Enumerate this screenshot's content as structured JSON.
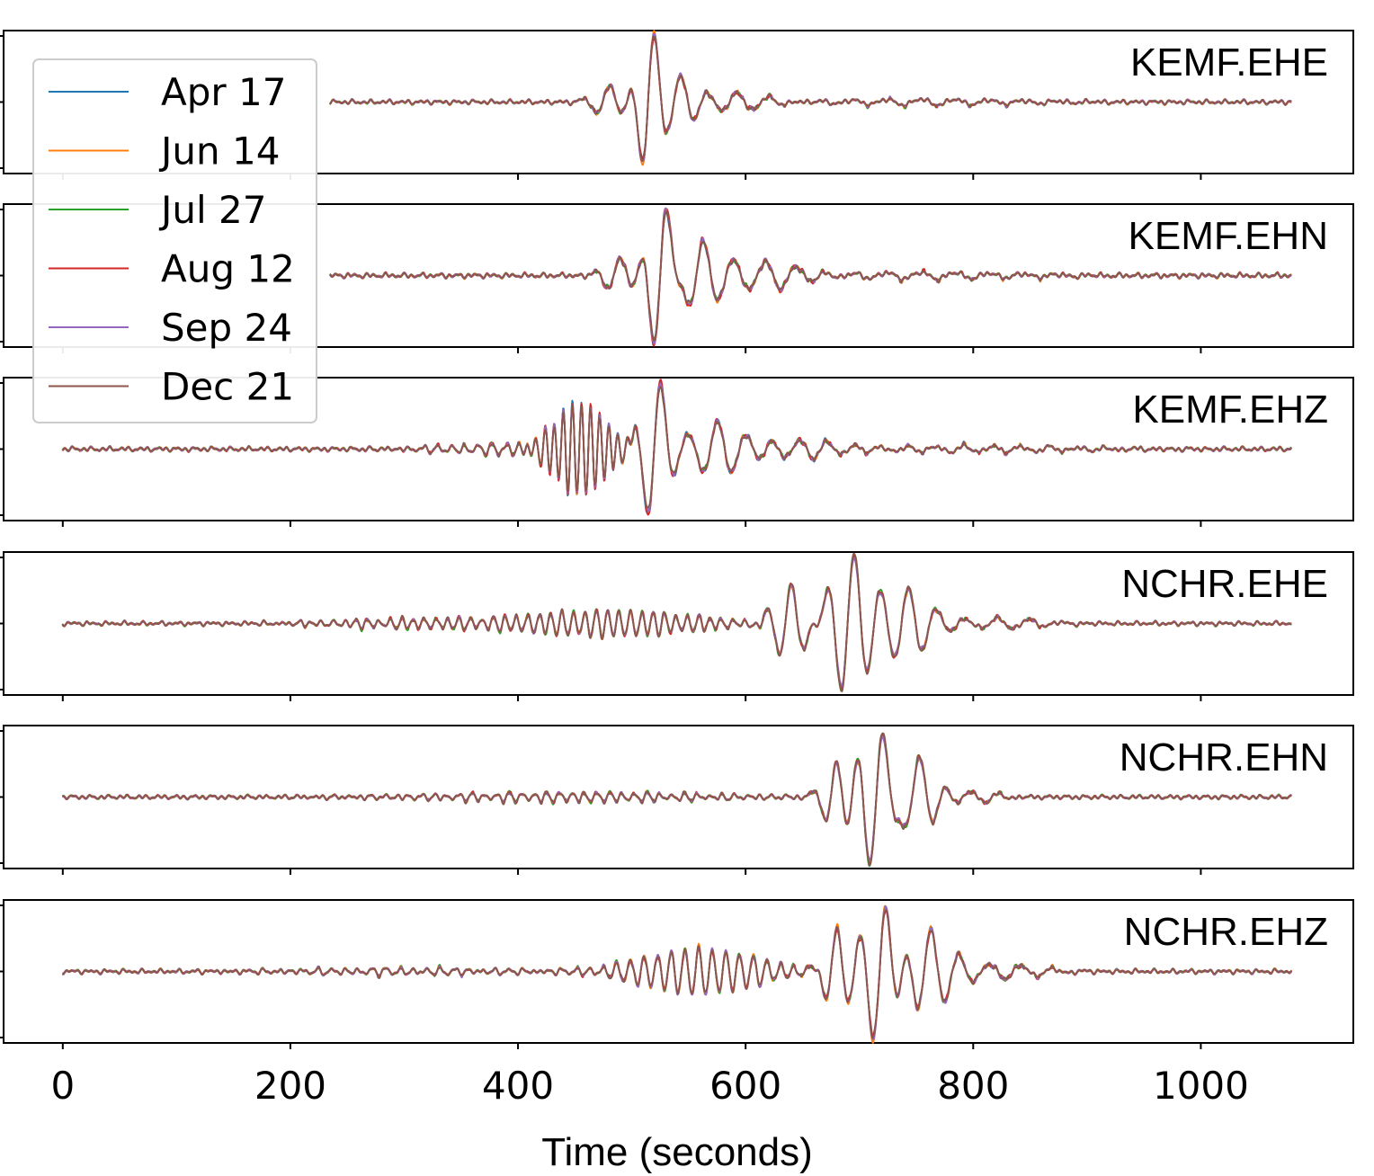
{
  "chart_data": {
    "type": "line",
    "xlabel": "Time (seconds)",
    "xlim": [
      -52,
      1134
    ],
    "x_ticks": [
      0,
      200,
      400,
      600,
      800,
      1000
    ],
    "x_tick_labels": [
      "0",
      "200",
      "400",
      "600",
      "800",
      "1000"
    ],
    "y_ticks_labeled": false,
    "legend": {
      "placement": "top-left",
      "entries": [
        "Apr 17",
        "Jun 14",
        "Jul 27",
        "Aug 12",
        "Sep 24",
        "Dec 21"
      ]
    },
    "series_colors": [
      "#1f77b4",
      "#ff7f0e",
      "#2ca02c",
      "#d62728",
      "#9467bd",
      "#8c564b"
    ],
    "panels": [
      {
        "label": "KEMF.EHE",
        "x_start": 235,
        "x_end": 1080,
        "packets": [
          {
            "c": 515,
            "w": 12,
            "a": 0.98,
            "p": 25
          },
          {
            "c": 540,
            "w": 22,
            "a": 0.35,
            "p": 26
          },
          {
            "c": 480,
            "w": 18,
            "a": 0.22,
            "p": 24
          },
          {
            "c": 595,
            "w": 40,
            "a": 0.12,
            "p": 28
          },
          {
            "c": 760,
            "w": 110,
            "a": 0.04,
            "p": 30
          }
        ]
      },
      {
        "label": "KEMF.EHN",
        "x_start": 235,
        "x_end": 1080,
        "packets": [
          {
            "c": 525,
            "w": 14,
            "a": 0.95,
            "p": 25
          },
          {
            "c": 560,
            "w": 24,
            "a": 0.4,
            "p": 26
          },
          {
            "c": 490,
            "w": 18,
            "a": 0.22,
            "p": 24
          },
          {
            "c": 620,
            "w": 40,
            "a": 0.18,
            "p": 28
          },
          {
            "c": 760,
            "w": 110,
            "a": 0.04,
            "p": 30
          }
        ]
      },
      {
        "label": "KEMF.EHZ",
        "x_start": 0,
        "x_end": 1080,
        "packets": [
          {
            "c": 520,
            "w": 15,
            "a": 0.98,
            "p": 25
          },
          {
            "c": 455,
            "w": 32,
            "a": 0.6,
            "p": 8
          },
          {
            "c": 575,
            "w": 30,
            "a": 0.35,
            "p": 26
          },
          {
            "c": 650,
            "w": 45,
            "a": 0.12,
            "p": 25
          },
          {
            "c": 380,
            "w": 70,
            "a": 0.06,
            "p": 12
          },
          {
            "c": 800,
            "w": 120,
            "a": 0.04,
            "p": 25
          }
        ]
      },
      {
        "label": "NCHR.EHE",
        "x_start": 0,
        "x_end": 1080,
        "packets": [
          {
            "c": 690,
            "w": 22,
            "a": 1.0,
            "p": 24
          },
          {
            "c": 740,
            "w": 30,
            "a": 0.5,
            "p": 25
          },
          {
            "c": 640,
            "w": 20,
            "a": 0.55,
            "p": 22
          },
          {
            "c": 480,
            "w": 100,
            "a": 0.18,
            "p": 10
          },
          {
            "c": 300,
            "w": 90,
            "a": 0.06,
            "p": 10
          },
          {
            "c": 830,
            "w": 40,
            "a": 0.08,
            "p": 28
          }
        ]
      },
      {
        "label": "NCHR.EHN",
        "x_start": 0,
        "x_end": 1080,
        "packets": [
          {
            "c": 715,
            "w": 20,
            "a": 1.0,
            "p": 24
          },
          {
            "c": 750,
            "w": 20,
            "a": 0.6,
            "p": 25
          },
          {
            "c": 680,
            "w": 16,
            "a": 0.5,
            "p": 22
          },
          {
            "c": 800,
            "w": 30,
            "a": 0.08,
            "p": 25
          },
          {
            "c": 450,
            "w": 160,
            "a": 0.06,
            "p": 11
          }
        ]
      },
      {
        "label": "NCHR.EHZ",
        "x_start": 0,
        "x_end": 1080,
        "packets": [
          {
            "c": 718,
            "w": 18,
            "a": 1.0,
            "p": 24
          },
          {
            "c": 760,
            "w": 25,
            "a": 0.55,
            "p": 25
          },
          {
            "c": 680,
            "w": 15,
            "a": 0.55,
            "p": 22
          },
          {
            "c": 560,
            "w": 70,
            "a": 0.3,
            "p": 12
          },
          {
            "c": 820,
            "w": 50,
            "a": 0.1,
            "p": 28
          },
          {
            "c": 300,
            "w": 120,
            "a": 0.04,
            "p": 12
          }
        ]
      }
    ]
  }
}
